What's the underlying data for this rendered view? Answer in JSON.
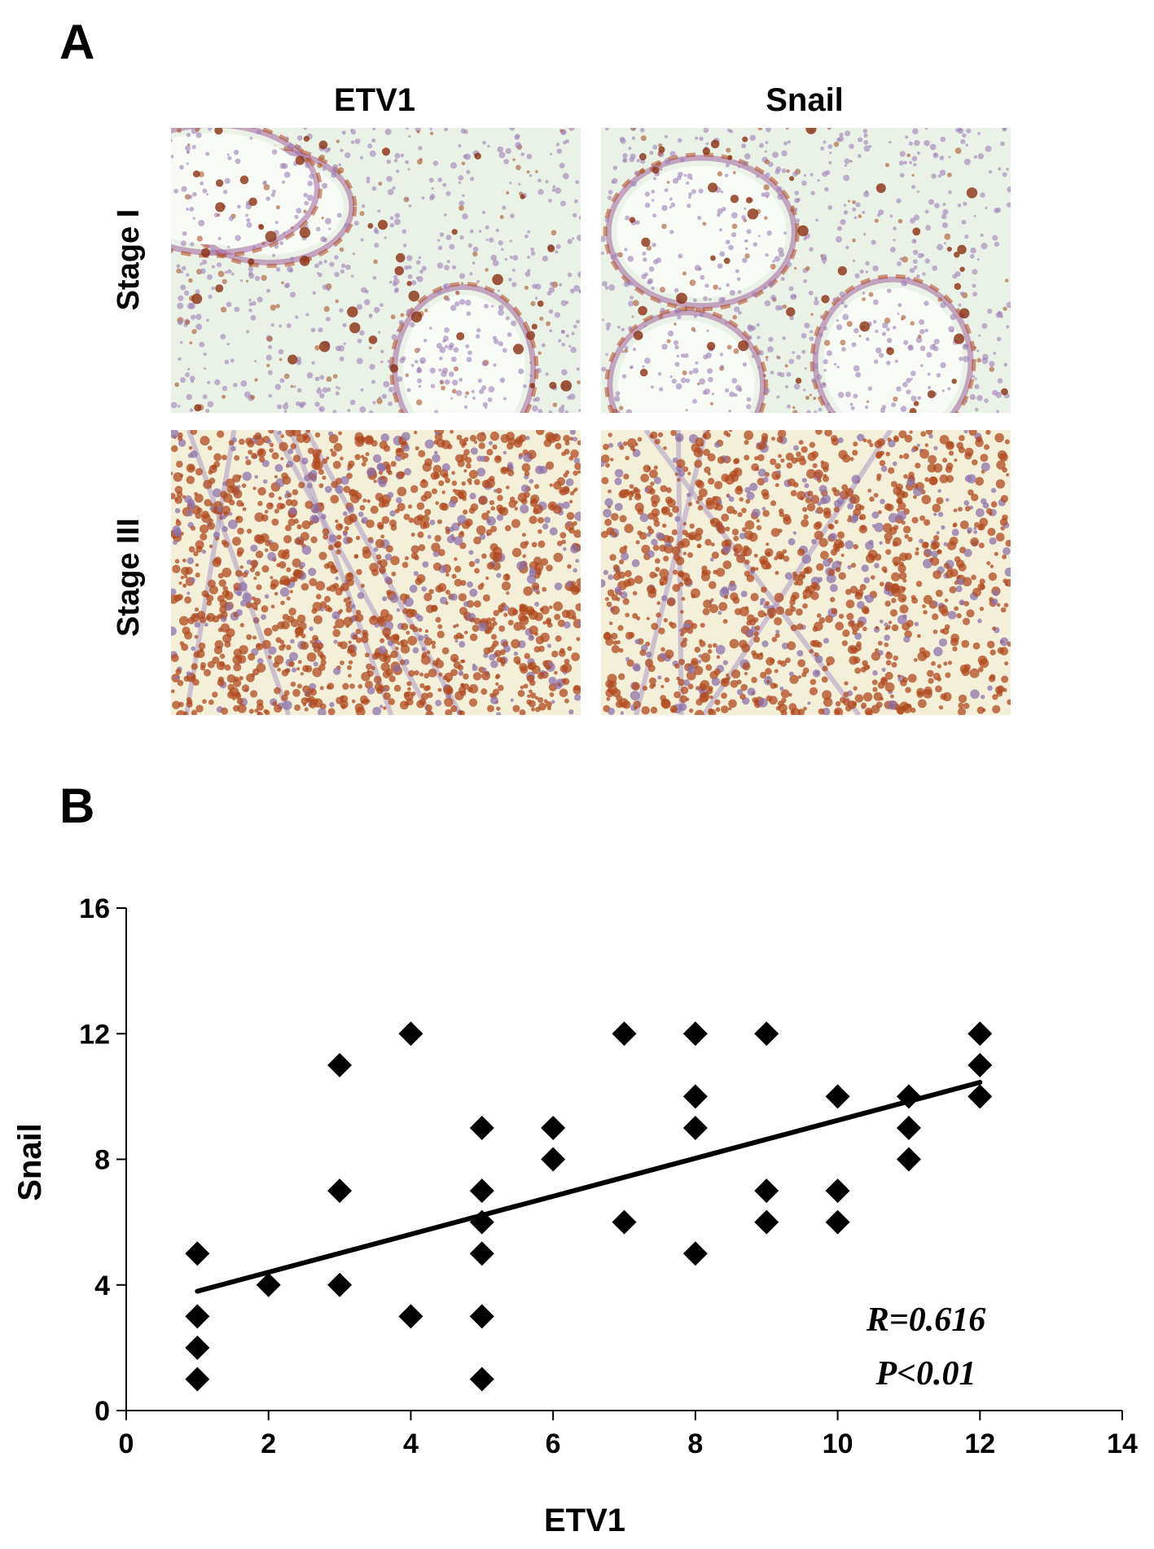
{
  "panel_a": {
    "label": "A",
    "columns": [
      "ETV1",
      "Snail"
    ],
    "rows": [
      "Stage I",
      "Stage III"
    ]
  },
  "panel_b": {
    "label": "B"
  },
  "chart_data": {
    "type": "scatter",
    "xlabel": "ETV1",
    "ylabel": "Snail",
    "xlim": [
      0,
      14
    ],
    "ylim": [
      0,
      16
    ],
    "xticks": [
      0,
      2,
      4,
      6,
      8,
      10,
      12,
      14
    ],
    "yticks": [
      0,
      4,
      8,
      12,
      16
    ],
    "grid": false,
    "points": [
      {
        "x": 1,
        "y": 5
      },
      {
        "x": 1,
        "y": 3
      },
      {
        "x": 1,
        "y": 2
      },
      {
        "x": 1,
        "y": 1
      },
      {
        "x": 2,
        "y": 4
      },
      {
        "x": 3,
        "y": 11
      },
      {
        "x": 3,
        "y": 7
      },
      {
        "x": 3,
        "y": 4
      },
      {
        "x": 4,
        "y": 12
      },
      {
        "x": 4,
        "y": 3
      },
      {
        "x": 5,
        "y": 9
      },
      {
        "x": 5,
        "y": 7
      },
      {
        "x": 5,
        "y": 6
      },
      {
        "x": 5,
        "y": 5
      },
      {
        "x": 5,
        "y": 3
      },
      {
        "x": 5,
        "y": 1
      },
      {
        "x": 6,
        "y": 9
      },
      {
        "x": 6,
        "y": 8
      },
      {
        "x": 7,
        "y": 12
      },
      {
        "x": 7,
        "y": 6
      },
      {
        "x": 8,
        "y": 12
      },
      {
        "x": 8,
        "y": 10
      },
      {
        "x": 8,
        "y": 9
      },
      {
        "x": 8,
        "y": 5
      },
      {
        "x": 9,
        "y": 12
      },
      {
        "x": 9,
        "y": 7
      },
      {
        "x": 9,
        "y": 6
      },
      {
        "x": 10,
        "y": 10
      },
      {
        "x": 10,
        "y": 7
      },
      {
        "x": 10,
        "y": 6
      },
      {
        "x": 11,
        "y": 10
      },
      {
        "x": 11,
        "y": 9
      },
      {
        "x": 11,
        "y": 8
      },
      {
        "x": 12,
        "y": 12
      },
      {
        "x": 12,
        "y": 11
      },
      {
        "x": 12,
        "y": 10
      }
    ],
    "trendline": {
      "x": [
        1,
        12
      ],
      "y": [
        3.8,
        10.45
      ]
    },
    "annotations": [
      "R=0.616",
      "P<0.01"
    ]
  }
}
